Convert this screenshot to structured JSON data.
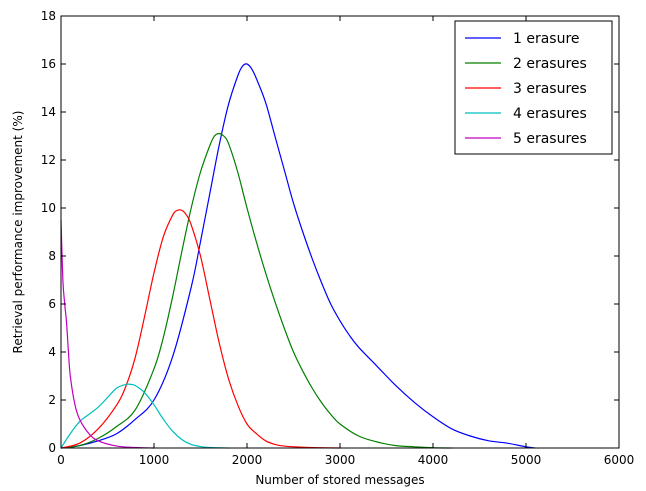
{
  "chart_data": {
    "type": "line",
    "title": "",
    "xlabel": "Number of stored messages",
    "ylabel": "Retrieval performance improvement (%)",
    "xlim": [
      0,
      6000
    ],
    "ylim": [
      0,
      18
    ],
    "xticks": [
      0,
      1000,
      2000,
      3000,
      4000,
      5000,
      6000
    ],
    "yticks": [
      0,
      2,
      4,
      6,
      8,
      10,
      12,
      14,
      16,
      18
    ],
    "grid": false,
    "legend": "top-right",
    "series": [
      {
        "name": "1 erasure",
        "color": "#0000ff",
        "x": [
          0,
          200,
          400,
          600,
          800,
          1000,
          1200,
          1400,
          1500,
          1600,
          1700,
          1800,
          1900,
          1950,
          2000,
          2050,
          2100,
          2200,
          2300,
          2400,
          2500,
          2600,
          2700,
          2800,
          2900,
          3000,
          3100,
          3200,
          3400,
          3600,
          3800,
          4000,
          4200,
          4400,
          4600,
          4800,
          5000,
          5100
        ],
        "y": [
          0,
          0.1,
          0.3,
          0.6,
          1.2,
          2.0,
          3.8,
          6.7,
          8.6,
          10.6,
          12.6,
          14.3,
          15.5,
          15.9,
          16.0,
          15.8,
          15.4,
          14.4,
          13.0,
          11.6,
          10.2,
          9.0,
          7.9,
          6.9,
          6.0,
          5.3,
          4.7,
          4.2,
          3.4,
          2.6,
          1.9,
          1.3,
          0.8,
          0.5,
          0.3,
          0.2,
          0.05,
          0
        ]
      },
      {
        "name": "2 erasures",
        "color": "#008000",
        "x": [
          0,
          200,
          400,
          600,
          800,
          1000,
          1100,
          1200,
          1300,
          1400,
          1500,
          1600,
          1650,
          1700,
          1750,
          1800,
          1900,
          2000,
          2100,
          2200,
          2300,
          2400,
          2500,
          2600,
          2700,
          2800,
          2900,
          3000,
          3200,
          3400,
          3600,
          3800,
          4000,
          4200
        ],
        "y": [
          0,
          0.1,
          0.4,
          0.9,
          1.6,
          3.3,
          4.6,
          6.3,
          8.2,
          10.0,
          11.5,
          12.6,
          13.0,
          13.1,
          13.0,
          12.7,
          11.5,
          10.0,
          8.6,
          7.3,
          6.1,
          5.0,
          4.0,
          3.2,
          2.5,
          1.9,
          1.4,
          1.0,
          0.5,
          0.25,
          0.1,
          0.05,
          0.01,
          0
        ]
      },
      {
        "name": "3 erasures",
        "color": "#ff0000",
        "x": [
          0,
          200,
          400,
          600,
          700,
          800,
          900,
          1000,
          1100,
          1200,
          1250,
          1300,
          1350,
          1400,
          1500,
          1600,
          1700,
          1800,
          1900,
          2000,
          2100,
          2200,
          2300,
          2400,
          2600,
          2800,
          3000
        ],
        "y": [
          0,
          0.2,
          0.8,
          1.8,
          2.6,
          3.8,
          5.5,
          7.3,
          8.8,
          9.7,
          9.9,
          9.9,
          9.7,
          9.3,
          8.0,
          6.2,
          4.4,
          2.9,
          1.8,
          1.0,
          0.6,
          0.3,
          0.15,
          0.08,
          0.03,
          0.01,
          0
        ]
      },
      {
        "name": "4 erasures",
        "color": "#00bfbf",
        "x": [
          0,
          100,
          200,
          300,
          400,
          500,
          600,
          700,
          750,
          800,
          900,
          1000,
          1100,
          1200,
          1300,
          1400,
          1500,
          1600,
          1800
        ],
        "y": [
          0,
          0.6,
          1.1,
          1.4,
          1.7,
          2.1,
          2.5,
          2.65,
          2.65,
          2.6,
          2.3,
          1.8,
          1.2,
          0.7,
          0.35,
          0.15,
          0.06,
          0.02,
          0
        ]
      },
      {
        "name": "5 erasures",
        "color": "#bf00bf",
        "x": [
          0,
          20,
          40,
          60,
          80,
          100,
          150,
          200,
          300,
          400,
          600,
          800,
          1000
        ],
        "y": [
          9.5,
          7.0,
          6.0,
          5.2,
          4.0,
          3.0,
          1.8,
          1.2,
          0.6,
          0.3,
          0.08,
          0.02,
          0
        ]
      }
    ]
  }
}
